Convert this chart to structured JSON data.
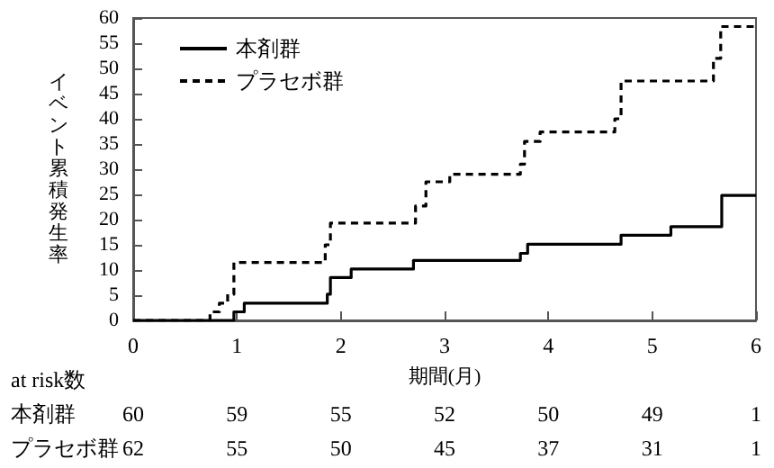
{
  "chart_data": {
    "type": "step",
    "xlabel": "期間(月)",
    "ylabel": "イベント累積発生率",
    "xlim": [
      0,
      6
    ],
    "xticks": [
      0,
      1,
      2,
      3,
      4,
      5,
      6
    ],
    "ylim": [
      0,
      60
    ],
    "yticks": [
      0,
      5,
      10,
      15,
      20,
      25,
      30,
      35,
      40,
      45,
      50,
      55,
      60
    ],
    "grid": false,
    "legend": "top left",
    "marker": "none",
    "series": [
      {
        "name": "本剤群",
        "color": "#000000",
        "line_style": "solid",
        "x": [
          0,
          0.97,
          1.07,
          1.87,
          1.9,
          2.1,
          2.7,
          3.73,
          3.8,
          4.7,
          5.18,
          5.67,
          6
        ],
        "values": [
          0,
          1.7,
          3.4,
          5.2,
          8.5,
          10.2,
          11.9,
          13.3,
          15.1,
          16.9,
          18.6,
          24.8,
          24.8
        ]
      },
      {
        "name": "プラセボ群",
        "color": "#000000",
        "line_style": "dashed",
        "x": [
          0,
          0.74,
          0.83,
          0.91,
          0.97,
          1.85,
          1.9,
          2.72,
          2.82,
          3.05,
          3.73,
          3.77,
          3.92,
          4.64,
          4.7,
          5.59,
          5.66,
          6
        ],
        "values": [
          0,
          1.7,
          3.4,
          5.2,
          11.5,
          15,
          19.3,
          22.7,
          27.5,
          29,
          31,
          35.5,
          37.4,
          40,
          47.5,
          52,
          58.3,
          58.3
        ]
      }
    ],
    "annotations": [
      "at risk数",
      "本剤群\t60\t59\t55\t52\t50\t49\t1",
      "プラセボ群\t62\t55\t50\t45\t37\t31\t1"
    ]
  }
}
